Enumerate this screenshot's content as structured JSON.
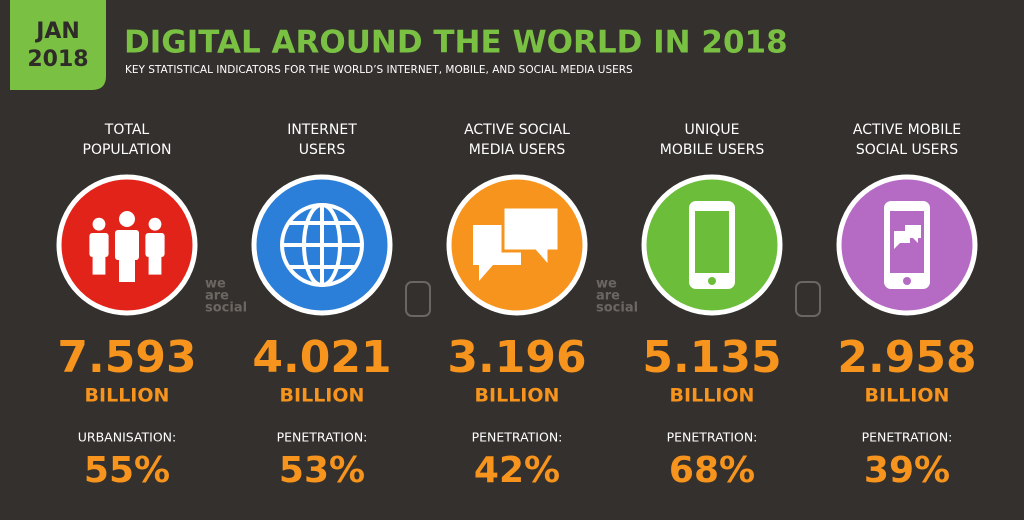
{
  "header": {
    "badge": [
      "JAN",
      "2018"
    ],
    "title": "DIGITAL AROUND THE WORLD IN 2018",
    "subtitle": "KEY STATISTICAL INDICATORS FOR THE WORLD’S INTERNET, MOBILE, AND SOCIAL MEDIA USERS"
  },
  "watermark": [
    "we",
    "are",
    "social"
  ],
  "columns": [
    {
      "label": [
        "TOTAL",
        "POPULATION"
      ],
      "value": "7.593",
      "unit": "BILLION",
      "metric_label": "URBANISATION:",
      "metric_value": "55%"
    },
    {
      "label": [
        "INTERNET",
        "USERS"
      ],
      "value": "4.021",
      "unit": "BILLION",
      "metric_label": "PENETRATION:",
      "metric_value": "53%"
    },
    {
      "label": [
        "ACTIVE SOCIAL",
        "MEDIA USERS"
      ],
      "value": "3.196",
      "unit": "BILLION",
      "metric_label": "PENETRATION:",
      "metric_value": "42%"
    },
    {
      "label": [
        "UNIQUE",
        "MOBILE USERS"
      ],
      "value": "5.135",
      "unit": "BILLION",
      "metric_label": "PENETRATION:",
      "metric_value": "68%"
    },
    {
      "label": [
        "ACTIVE MOBILE",
        "SOCIAL USERS"
      ],
      "value": "2.958",
      "unit": "BILLION",
      "metric_label": "PENETRATION:",
      "metric_value": "39%"
    }
  ]
}
